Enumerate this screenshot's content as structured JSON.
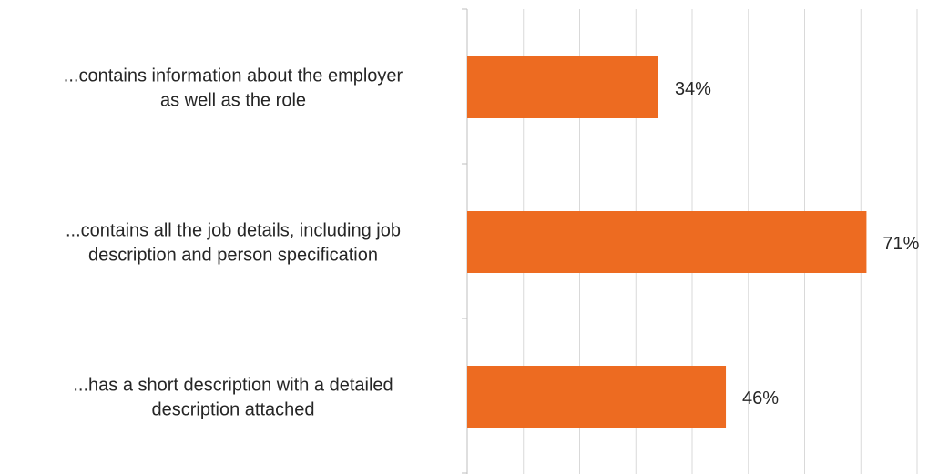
{
  "chart_data": {
    "type": "bar",
    "orientation": "horizontal",
    "categories": [
      [
        "...contains information about the employer",
        "as well as the role"
      ],
      [
        "...contains all the job details, including job",
        "description and person specification"
      ],
      [
        "...has a short description with a detailed",
        "description attached"
      ]
    ],
    "values": [
      34,
      71,
      46
    ],
    "value_labels": [
      "34%",
      "71%",
      "46%"
    ],
    "xlim": [
      0,
      80
    ],
    "x_gridline_step": 10,
    "grid": true,
    "legend": "none",
    "title": "",
    "xlabel": "",
    "ylabel": "",
    "bar_color": "#ED6B21",
    "grid_color": "#D9D9D9",
    "axis_color": "#BFBFBF"
  }
}
